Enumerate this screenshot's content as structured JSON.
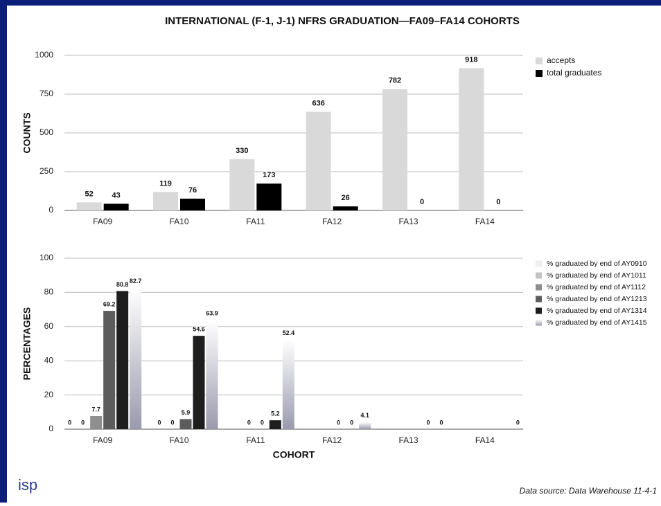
{
  "chart_data": [
    {
      "type": "bar",
      "title": "INTERNATIONAL (F-1, J-1) NFRS GRADUATION—FA09–FA14 COHORTS",
      "y_label": "COUNTS",
      "categories": [
        "FA09",
        "FA10",
        "FA11",
        "FA12",
        "FA13",
        "FA14"
      ],
      "series": [
        {
          "name": "accepts",
          "color": "#d9d9d9",
          "values": [
            52,
            119,
            330,
            636,
            782,
            918
          ]
        },
        {
          "name": "total graduates",
          "color": "#000000",
          "values": [
            43,
            76,
            173,
            26,
            0,
            0
          ]
        }
      ],
      "ylim": [
        0,
        1000
      ],
      "yticks": [
        0,
        250,
        500,
        750,
        1000
      ],
      "grid": true,
      "legend": "right"
    },
    {
      "type": "bar",
      "y_label": "PERCENTAGES",
      "x_label": "COHORT",
      "categories": [
        "FA09",
        "FA10",
        "FA11",
        "FA12",
        "FA13",
        "FA14"
      ],
      "series": [
        {
          "name": "% graduated by end of AY0910",
          "color": "#efefef",
          "values": [
            0,
            null,
            null,
            null,
            null,
            null
          ]
        },
        {
          "name": "% graduated by end of AY1011",
          "color": "#c4c4c4",
          "values": [
            0,
            0,
            null,
            null,
            null,
            null
          ]
        },
        {
          "name": "% graduated by end of AY1112",
          "color": "#8e8e8e",
          "values": [
            7.7,
            0,
            0,
            null,
            null,
            null
          ]
        },
        {
          "name": "% graduated by end of AY1213",
          "color": "#5c5c5c",
          "values": [
            69.2,
            5.9,
            0,
            0,
            null,
            null
          ]
        },
        {
          "name": "% graduated by end of AY1314",
          "color": "#1e1e1e",
          "values": [
            80.8,
            54.6,
            5.2,
            0,
            0,
            null
          ]
        },
        {
          "name": "% graduated by end of AY1415",
          "color": "#9a9aae",
          "values": [
            82.7,
            63.9,
            52.4,
            4.1,
            0,
            0
          ]
        }
      ],
      "ylim": [
        0,
        100
      ],
      "yticks": [
        0,
        20,
        40,
        60,
        80,
        100
      ],
      "grid": true,
      "legend": "right"
    }
  ],
  "footer": {
    "logo": "isp",
    "source": "Data source: Data Warehouse 11-4-1"
  }
}
